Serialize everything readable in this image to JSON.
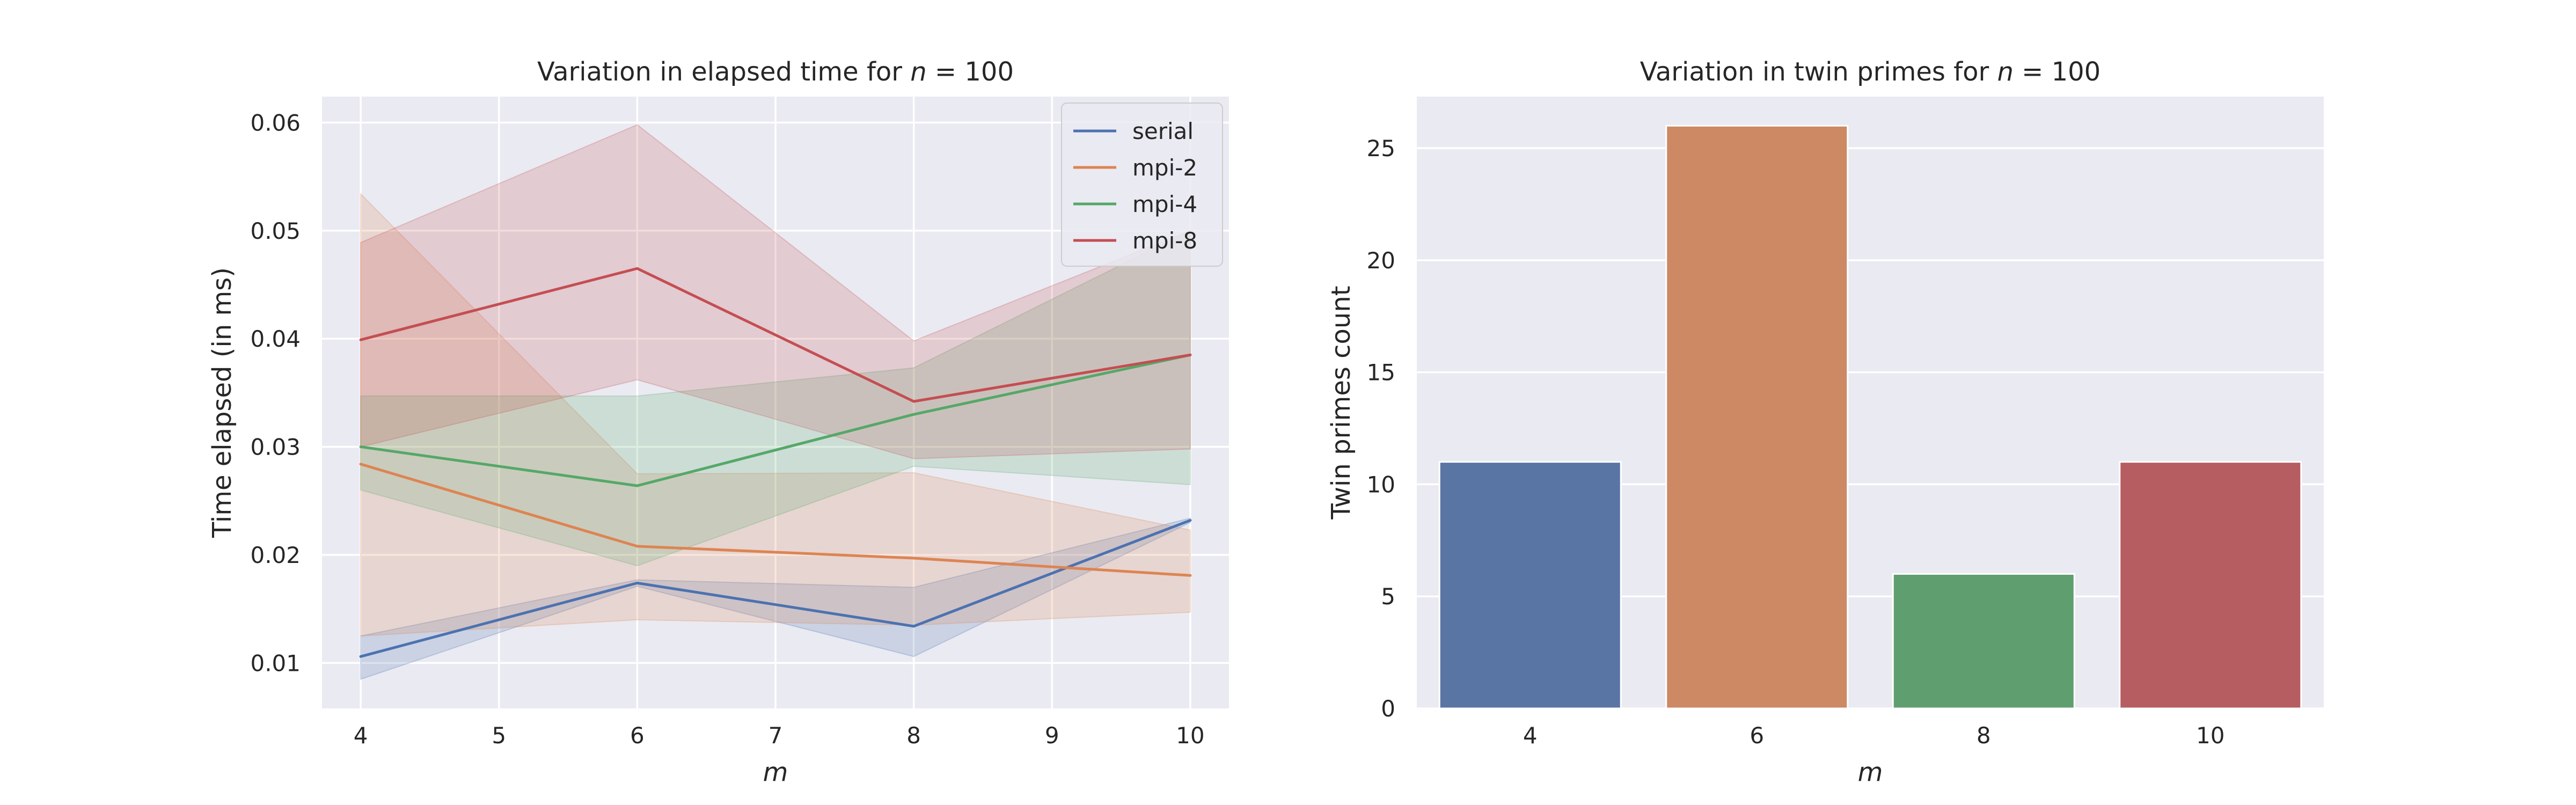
{
  "chart_data": [
    {
      "type": "line",
      "title": "Variation in elapsed time for n = 100",
      "title_parts": {
        "prefix": "Variation in elapsed time for ",
        "var": "n",
        "suffix": " = 100"
      },
      "xlabel": "m",
      "ylabel": "Time elapsed (in ms)",
      "xlim": [
        3.72,
        10.28
      ],
      "ylim": [
        0.0058,
        0.0624
      ],
      "xticks": [
        4,
        5,
        6,
        7,
        8,
        9,
        10
      ],
      "yticks": [
        0.01,
        0.02,
        0.03,
        0.04,
        0.05,
        0.06
      ],
      "ytick_labels": [
        "0.01",
        "0.02",
        "0.03",
        "0.04",
        "0.05",
        "0.06"
      ],
      "grid": true,
      "legend_position": "top-right",
      "x": [
        4,
        6,
        8,
        10
      ],
      "series": [
        {
          "name": "serial",
          "color": "#4c72b0",
          "values": [
            0.0106,
            0.0174,
            0.0134,
            0.0232
          ],
          "lower": [
            0.0085,
            0.0171,
            0.0106,
            0.023
          ],
          "upper": [
            0.0125,
            0.0177,
            0.017,
            0.0234
          ]
        },
        {
          "name": "mpi-2",
          "color": "#dd8452",
          "values": [
            0.0284,
            0.0208,
            0.0197,
            0.0181
          ],
          "lower": [
            0.0125,
            0.014,
            0.0135,
            0.0147
          ],
          "upper": [
            0.0534,
            0.0275,
            0.0276,
            0.0223
          ]
        },
        {
          "name": "mpi-4",
          "color": "#55a868",
          "values": [
            0.03,
            0.0264,
            0.033,
            0.0385
          ],
          "lower": [
            0.026,
            0.019,
            0.0282,
            0.0265
          ],
          "upper": [
            0.0347,
            0.0347,
            0.0373,
            0.05
          ]
        },
        {
          "name": "mpi-8",
          "color": "#c44e52",
          "values": [
            0.0399,
            0.0465,
            0.0342,
            0.0385
          ],
          "lower": [
            0.03,
            0.0362,
            0.0289,
            0.0298
          ],
          "upper": [
            0.0489,
            0.0598,
            0.0398,
            0.05
          ]
        }
      ]
    },
    {
      "type": "bar",
      "title": "Variation in twin primes for n = 100",
      "title_parts": {
        "prefix": "Variation in twin primes for ",
        "var": "n",
        "suffix": " = 100"
      },
      "xlabel": "m",
      "ylabel": "Twin primes count",
      "categories": [
        "4",
        "6",
        "8",
        "10"
      ],
      "values": [
        11,
        26,
        6,
        11
      ],
      "colors": [
        "#5975a4",
        "#cc8963",
        "#5f9e6e",
        "#b55d60"
      ],
      "ylim": [
        0,
        27.3
      ],
      "yticks": [
        0,
        5,
        10,
        15,
        20,
        25
      ],
      "grid": true
    }
  ]
}
